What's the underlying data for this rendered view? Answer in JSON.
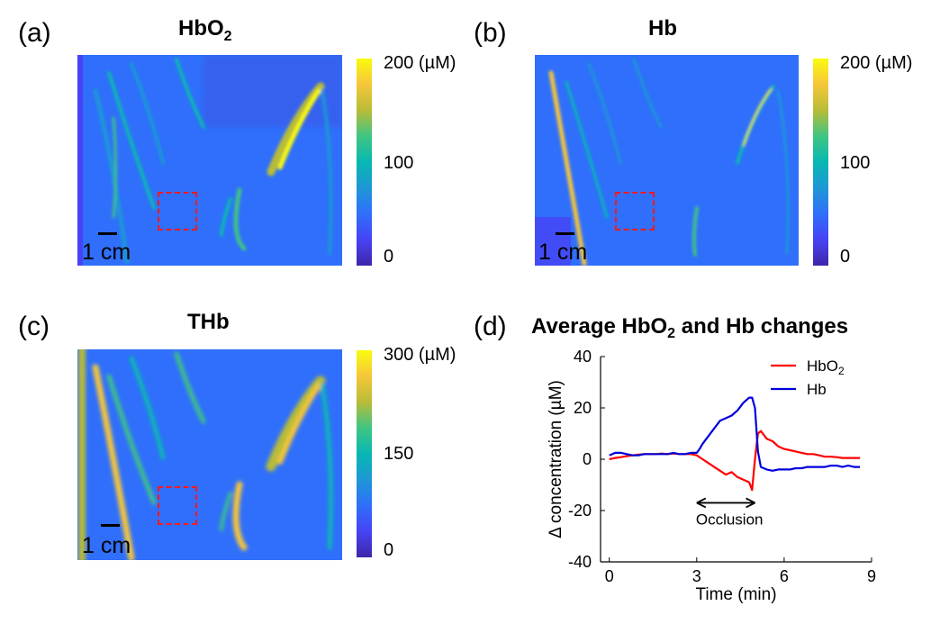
{
  "panels": {
    "a": {
      "label": "(a)",
      "title_main": "HbO",
      "title_sub": "2",
      "colorbar_max": "200 (µM)",
      "colorbar_mid": "100",
      "colorbar_min": "0",
      "scalebar": "1 cm"
    },
    "b": {
      "label": "(b)",
      "title": "Hb",
      "colorbar_max": "200 (µM)",
      "colorbar_mid": "100",
      "colorbar_min": "0",
      "scalebar": "1 cm"
    },
    "c": {
      "label": "(c)",
      "title": "THb",
      "colorbar_max": "300 (µM)",
      "colorbar_mid": "150",
      "colorbar_min": "0",
      "scalebar": "1 cm"
    },
    "d": {
      "label": "(d)"
    }
  },
  "colormap": [
    "#3e26a8",
    "#4743f5",
    "#2f6ffb",
    "#1e97d7",
    "#07b8b2",
    "#3fc583",
    "#b8bc37",
    "#f6c63a",
    "#f9fb0e"
  ],
  "chart_data": {
    "type": "line",
    "title": "Average HbO2 and Hb changes",
    "xlabel": "Time (min)",
    "ylabel": "Δ concentration (µM)",
    "xlim": [
      -0.3,
      9
    ],
    "ylim": [
      -40,
      40
    ],
    "xticks": [
      0,
      3,
      6,
      9
    ],
    "yticks": [
      40,
      20,
      0,
      -20,
      -40
    ],
    "legend_position": "top-right",
    "annotation": {
      "text": "Occlusion",
      "x_start": 3.0,
      "x_end": 5.0,
      "y": -17
    },
    "series": [
      {
        "name": "HbO2",
        "color": "#ff0000",
        "x": [
          0,
          0.2,
          0.4,
          0.6,
          0.8,
          1.0,
          1.2,
          1.4,
          1.6,
          1.8,
          2.0,
          2.2,
          2.4,
          2.6,
          2.8,
          3.0,
          3.2,
          3.4,
          3.6,
          3.8,
          4.0,
          4.2,
          4.4,
          4.6,
          4.8,
          4.9,
          5.0,
          5.1,
          5.2,
          5.4,
          5.6,
          5.8,
          6.0,
          6.2,
          6.4,
          6.6,
          6.8,
          7.0,
          7.2,
          7.4,
          7.6,
          7.8,
          8.0,
          8.2,
          8.4,
          8.6
        ],
        "values": [
          0,
          0.5,
          0.8,
          1.2,
          1.5,
          1.8,
          2.0,
          2.0,
          2.0,
          2.2,
          2.0,
          2.2,
          2.0,
          2.0,
          2.0,
          1.5,
          0,
          -1.5,
          -3,
          -4.5,
          -6,
          -5,
          -7,
          -8,
          -9,
          -12,
          0,
          10,
          11,
          8,
          7,
          5,
          4,
          3.5,
          3,
          2.5,
          2,
          2,
          1.5,
          1,
          1,
          0.8,
          0.5,
          0.5,
          0.5,
          0.5
        ]
      },
      {
        "name": "Hb",
        "color": "#0000dd",
        "x": [
          0,
          0.2,
          0.4,
          0.6,
          0.8,
          1.0,
          1.2,
          1.4,
          1.6,
          1.8,
          2.0,
          2.2,
          2.4,
          2.6,
          2.8,
          3.0,
          3.1,
          3.2,
          3.4,
          3.6,
          3.8,
          4.0,
          4.2,
          4.4,
          4.6,
          4.8,
          4.9,
          5.0,
          5.1,
          5.2,
          5.4,
          5.6,
          5.8,
          6.0,
          6.2,
          6.4,
          6.6,
          6.8,
          7.0,
          7.2,
          7.4,
          7.6,
          7.8,
          8.0,
          8.2,
          8.4,
          8.6
        ],
        "values": [
          1.5,
          2.5,
          2.5,
          2.0,
          1.5,
          1.5,
          2.0,
          2.0,
          2.0,
          2.0,
          2.0,
          2.5,
          2.0,
          2.0,
          2.5,
          2.5,
          4,
          6,
          9,
          12,
          15,
          16,
          17,
          19,
          22,
          24,
          24,
          20,
          3,
          -3,
          -4,
          -4.5,
          -4,
          -4,
          -4,
          -3.5,
          -3.5,
          -3,
          -3,
          -3,
          -3,
          -2.5,
          -2.5,
          -3,
          -2.5,
          -3,
          -3
        ]
      }
    ]
  }
}
